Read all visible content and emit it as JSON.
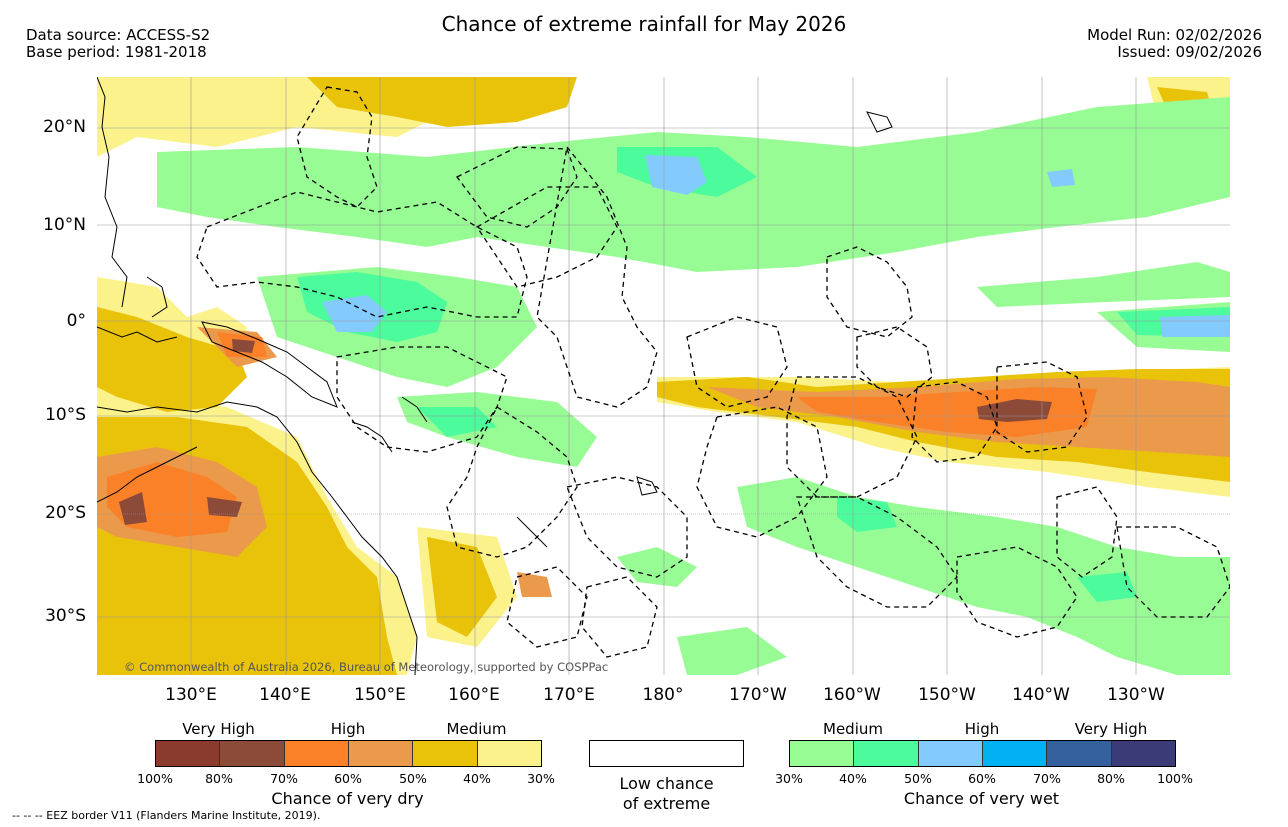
{
  "header": {
    "title": "Chance of extreme rainfall for May 2026",
    "data_source": "Data source: ACCESS-S2",
    "base_period": "Base period: 1981-2018",
    "model_run": "Model Run: 02/02/2026",
    "issued": "Issued: 09/02/2026"
  },
  "map": {
    "lat_labels": [
      "20°N",
      "10°N",
      "0°",
      "10°S",
      "20°S",
      "30°S"
    ],
    "lon_labels": [
      "130°E",
      "140°E",
      "150°E",
      "160°E",
      "170°E",
      "180°",
      "170°W",
      "160°W",
      "150°W",
      "140°W",
      "130°W"
    ],
    "copyright": "© Commonwealth of Australia 2026, Bureau of Meteorology, supported by COSPPac",
    "colors": {
      "dry_very_high_1": "#8b3a2e",
      "dry_very_high_2": "#8c4a38",
      "dry_high_1": "#fb8129",
      "dry_high_2": "#ea9a4a",
      "dry_medium_1": "#e9c30a",
      "dry_medium_2": "#fbf28c",
      "wet_medium_1": "#98fc95",
      "wet_medium_2": "#4bfb9c",
      "wet_high_1": "#83cbfd",
      "wet_high_2": "#02b1f2",
      "wet_very_high_1": "#34609d",
      "wet_very_high_2": "#3a3b77",
      "coast": "#000000",
      "eez": "#000000"
    }
  },
  "legend": {
    "dry": {
      "categories": [
        "Very High",
        "High",
        "Medium"
      ],
      "ticks": [
        "100%",
        "80%",
        "70%",
        "60%",
        "50%",
        "40%",
        "30%"
      ],
      "title": "Chance of very dry"
    },
    "low": {
      "line1": "Low chance",
      "line2": "of extreme"
    },
    "wet": {
      "categories": [
        "Medium",
        "High",
        "Very High"
      ],
      "ticks": [
        "30%",
        "40%",
        "50%",
        "60%",
        "70%",
        "80%",
        "100%"
      ],
      "title": "Chance of very wet"
    }
  },
  "footer": {
    "eez_note": "--  --  -- EEZ border V11 (Flanders Marine Institute, 2019)."
  }
}
